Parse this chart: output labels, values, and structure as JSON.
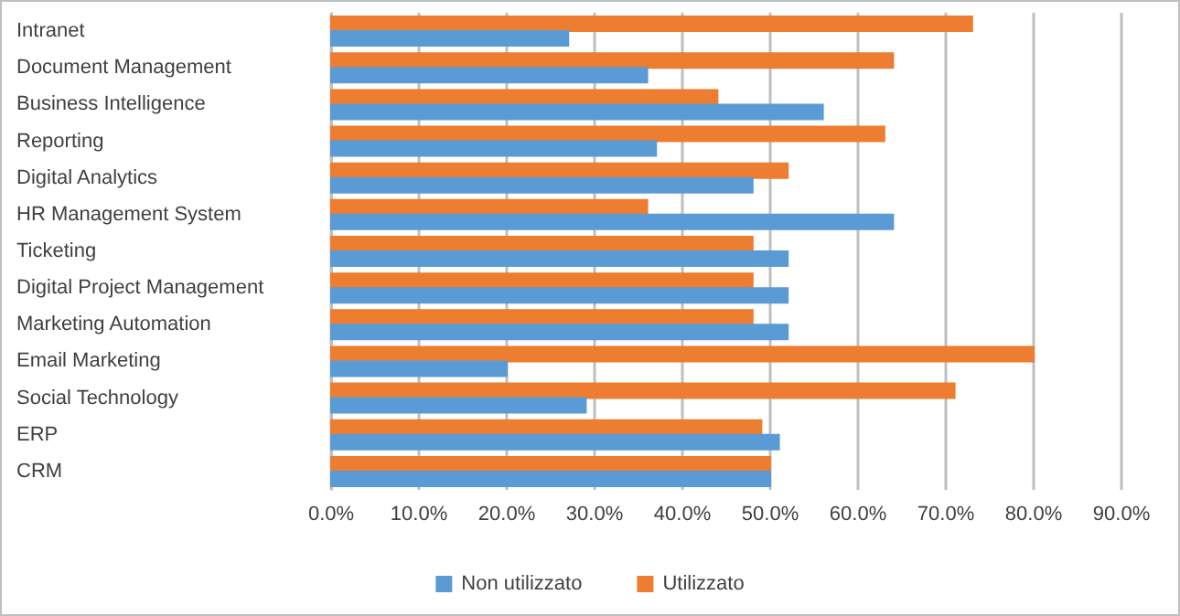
{
  "chart_data": {
    "type": "bar",
    "orientation": "horizontal",
    "categories": [
      "Intranet",
      "Document Management",
      "Business Intelligence",
      "Reporting",
      "Digital Analytics",
      "HR Management System",
      "Ticketing",
      "Digital Project Management",
      "Marketing Automation",
      "Email Marketing",
      "Social Technology",
      "ERP",
      "CRM"
    ],
    "series": [
      {
        "name": "Non utilizzato",
        "color": "#5b9bd5",
        "values": [
          27,
          36,
          56,
          37,
          48,
          64,
          52,
          52,
          52,
          20,
          29,
          51,
          50
        ]
      },
      {
        "name": "Utilizzato",
        "color": "#ed7d31",
        "values": [
          73,
          64,
          44,
          63,
          52,
          36,
          48,
          48,
          48,
          80,
          71,
          49,
          50
        ]
      }
    ],
    "xlim": [
      0,
      90
    ],
    "xticks": [
      {
        "value": 0,
        "label": "0.0%"
      },
      {
        "value": 10,
        "label": "10.0%"
      },
      {
        "value": 20,
        "label": "20.0%"
      },
      {
        "value": 30,
        "label": "30.0%"
      },
      {
        "value": 40,
        "label": "40.0%"
      },
      {
        "value": 50,
        "label": "50.0%"
      },
      {
        "value": 60,
        "label": "60.0%"
      },
      {
        "value": 70,
        "label": "70.0%"
      },
      {
        "value": 80,
        "label": "80.0%"
      },
      {
        "value": 90,
        "label": "90.0%"
      }
    ],
    "grid": "x",
    "legend": "bottom"
  }
}
